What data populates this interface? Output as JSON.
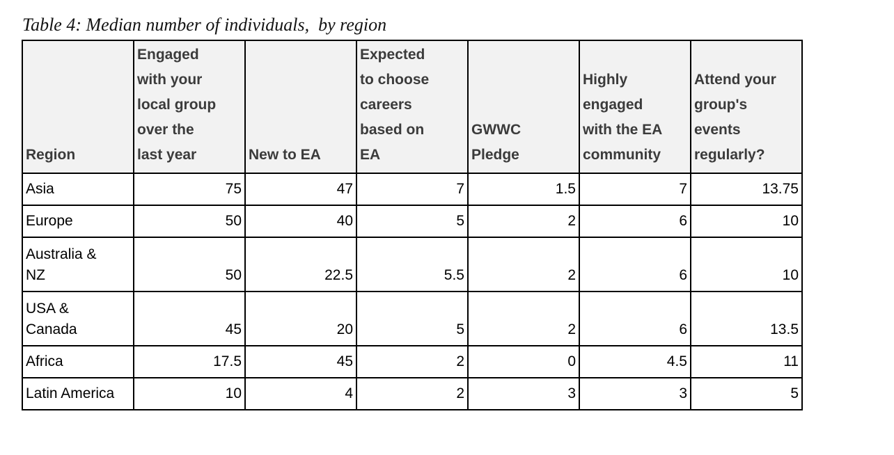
{
  "title": "Table 4: Median number of individuals,  by region",
  "colors": {
    "header_bg": "#f2f2f2",
    "header_text": "#3b3b3b",
    "border": "#000000",
    "body_text": "#000000",
    "page_bg": "#ffffff"
  },
  "table": {
    "columns": [
      "Region",
      "Engaged\nwith your\nlocal group\nover the\nlast year",
      "New to EA",
      "Expected\nto choose\ncareers\nbased on\nEA",
      "GWWC\nPledge",
      "Highly\nengaged\nwith the EA\ncommunity",
      "Attend your\ngroup's\nevents\nregularly?"
    ],
    "rows": [
      {
        "cells": [
          "Asia",
          "75",
          "47",
          "7",
          "1.5",
          "7",
          "13.75"
        ]
      },
      {
        "cells": [
          "Europe",
          "50",
          "40",
          "5",
          "2",
          "6",
          "10"
        ]
      },
      {
        "cells": [
          "Australia &\nNZ",
          "50",
          "22.5",
          "5.5",
          "2",
          "6",
          "10"
        ]
      },
      {
        "cells": [
          "USA &\nCanada",
          "45",
          "20",
          "5",
          "2",
          "6",
          "13.5"
        ]
      },
      {
        "cells": [
          "Africa",
          "17.5",
          "45",
          "2",
          "0",
          "4.5",
          "11"
        ]
      },
      {
        "cells": [
          "Latin America",
          "10",
          "4",
          "2",
          "3",
          "3",
          "5"
        ]
      }
    ]
  }
}
